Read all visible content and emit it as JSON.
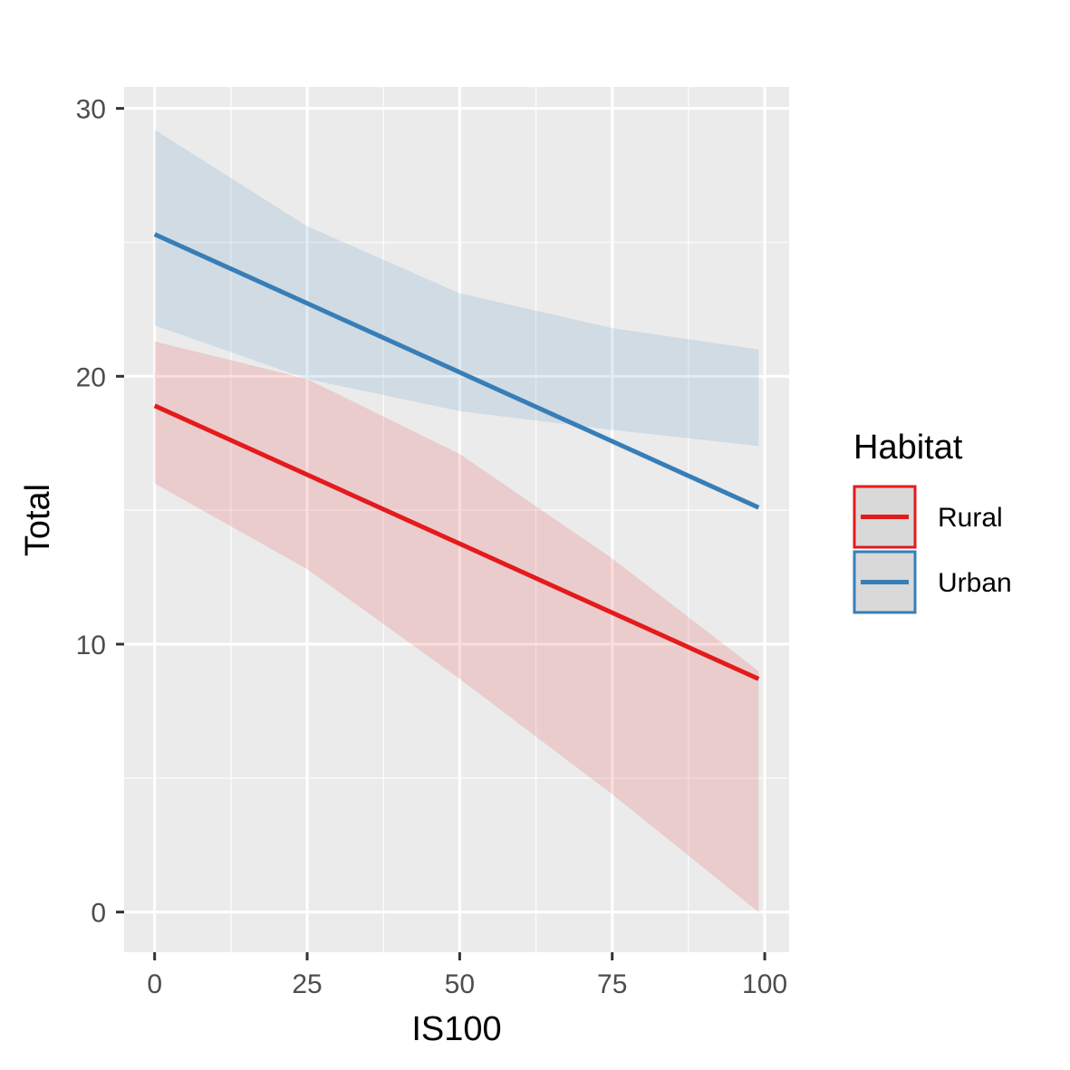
{
  "chart_data": {
    "type": "line",
    "xlabel": "IS100",
    "ylabel": "Total",
    "xlim": [
      -5,
      104
    ],
    "ylim": [
      -1.5,
      30.8
    ],
    "x_ticks": [
      0,
      25,
      50,
      75,
      100
    ],
    "x_tick_labels": [
      "0",
      "25",
      "50",
      "75",
      "100"
    ],
    "y_ticks": [
      0,
      10,
      20,
      30
    ],
    "y_tick_labels": [
      "0",
      "10",
      "20",
      "30"
    ],
    "grid": true,
    "background": "#ebebeb",
    "legend": {
      "title": "Habitat",
      "position": "right"
    },
    "series": [
      {
        "name": "Rural",
        "color": "#e41a1c",
        "x": [
          0,
          99
        ],
        "y": [
          18.9,
          8.7
        ],
        "ribbon": {
          "x": [
            0,
            25,
            50,
            75,
            99
          ],
          "lower": [
            16.0,
            12.8,
            8.7,
            4.4,
            0.0
          ],
          "upper": [
            21.3,
            19.9,
            17.1,
            13.2,
            9.0
          ]
        }
      },
      {
        "name": "Urban",
        "color": "#377eb8",
        "x": [
          0,
          99
        ],
        "y": [
          25.3,
          15.1
        ],
        "ribbon": {
          "x": [
            0,
            25,
            50,
            75,
            99
          ],
          "lower": [
            21.9,
            19.9,
            18.7,
            18.0,
            17.4
          ],
          "upper": [
            29.2,
            25.6,
            23.1,
            21.8,
            21.0
          ]
        }
      }
    ]
  }
}
